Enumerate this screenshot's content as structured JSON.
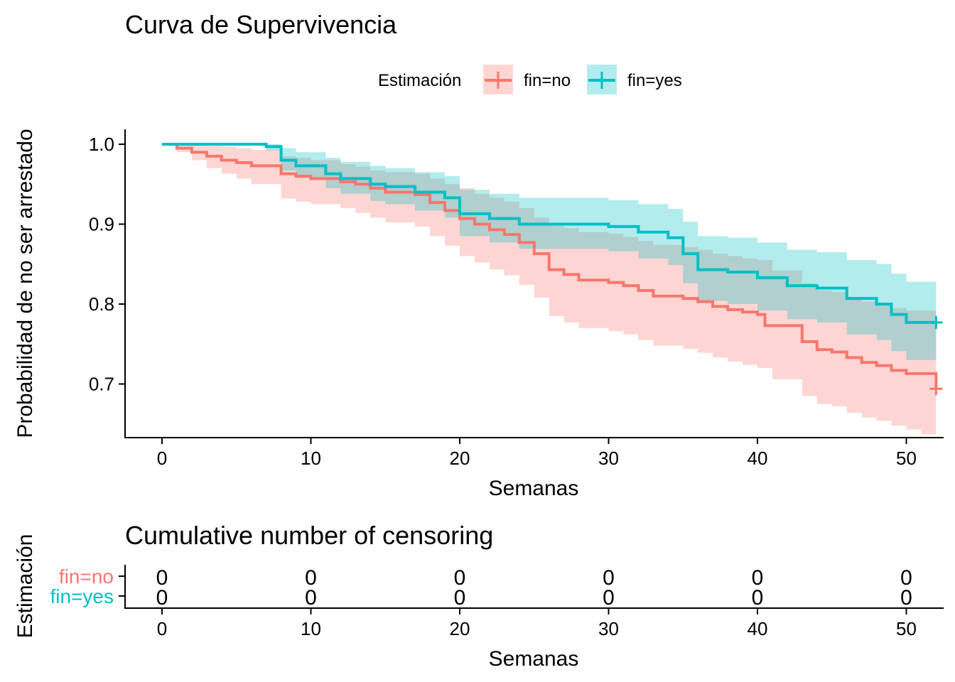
{
  "colors": {
    "no": "#F8766D",
    "yes": "#00BFC4",
    "axis": "#000000"
  },
  "legend": {
    "title": "Estimación",
    "items": [
      {
        "key": "no",
        "label": "fin=no"
      },
      {
        "key": "yes",
        "label": "fin=yes"
      }
    ]
  },
  "chart_data": [
    {
      "type": "line",
      "title": "Curva de Supervivencia",
      "xlabel": "Semanas",
      "ylabel": "Probabilidad de no ser arrestado",
      "xlim": [
        0,
        52
      ],
      "ylim": [
        0.65,
        1.0
      ],
      "xticks": [
        0,
        10,
        20,
        30,
        40,
        50
      ],
      "yticks": [
        0.7,
        0.8,
        0.9,
        1.0
      ],
      "ytick_labels": [
        "0.7",
        "0.8",
        "0.9",
        "1.0"
      ],
      "legend_position": "top",
      "grid": false,
      "series": [
        {
          "name": "fin=no",
          "color": "#F8766D",
          "steps": [
            [
              0,
              1.0
            ],
            [
              1,
              0.995
            ],
            [
              2,
              0.99
            ],
            [
              3,
              0.985
            ],
            [
              4,
              0.98
            ],
            [
              5,
              0.977
            ],
            [
              6,
              0.973
            ],
            [
              8,
              0.963
            ],
            [
              9,
              0.96
            ],
            [
              10,
              0.957
            ],
            [
              12,
              0.953
            ],
            [
              13,
              0.95
            ],
            [
              14,
              0.945
            ],
            [
              15,
              0.94
            ],
            [
              17,
              0.937
            ],
            [
              18,
              0.927
            ],
            [
              19,
              0.917
            ],
            [
              20,
              0.907
            ],
            [
              21,
              0.9
            ],
            [
              22,
              0.893
            ],
            [
              23,
              0.887
            ],
            [
              24,
              0.877
            ],
            [
              25,
              0.863
            ],
            [
              26,
              0.843
            ],
            [
              27,
              0.837
            ],
            [
              28,
              0.83
            ],
            [
              30,
              0.827
            ],
            [
              31,
              0.823
            ],
            [
              32,
              0.817
            ],
            [
              33,
              0.81
            ],
            [
              35,
              0.807
            ],
            [
              36,
              0.803
            ],
            [
              37,
              0.797
            ],
            [
              38,
              0.793
            ],
            [
              39,
              0.79
            ],
            [
              40,
              0.787
            ],
            [
              40.5,
              0.773
            ],
            [
              43,
              0.753
            ],
            [
              44,
              0.743
            ],
            [
              45,
              0.74
            ],
            [
              46,
              0.733
            ],
            [
              47,
              0.727
            ],
            [
              48,
              0.723
            ],
            [
              49,
              0.717
            ],
            [
              50,
              0.713
            ],
            [
              52,
              0.694
            ]
          ],
          "ci_lower": [
            [
              0,
              1.0
            ],
            [
              1,
              0.99
            ],
            [
              2,
              0.98
            ],
            [
              3,
              0.97
            ],
            [
              4,
              0.963
            ],
            [
              5,
              0.957
            ],
            [
              6,
              0.95
            ],
            [
              8,
              0.932
            ],
            [
              9,
              0.928
            ],
            [
              10,
              0.925
            ],
            [
              12,
              0.92
            ],
            [
              13,
              0.914
            ],
            [
              14,
              0.908
            ],
            [
              15,
              0.902
            ],
            [
              17,
              0.897
            ],
            [
              18,
              0.885
            ],
            [
              19,
              0.873
            ],
            [
              20,
              0.86
            ],
            [
              21,
              0.852
            ],
            [
              22,
              0.843
            ],
            [
              23,
              0.836
            ],
            [
              24,
              0.824
            ],
            [
              25,
              0.808
            ],
            [
              26,
              0.785
            ],
            [
              27,
              0.777
            ],
            [
              28,
              0.77
            ],
            [
              30,
              0.766
            ],
            [
              31,
              0.762
            ],
            [
              32,
              0.755
            ],
            [
              33,
              0.748
            ],
            [
              35,
              0.744
            ],
            [
              36,
              0.739
            ],
            [
              37,
              0.733
            ],
            [
              38,
              0.728
            ],
            [
              39,
              0.724
            ],
            [
              40,
              0.72
            ],
            [
              41,
              0.706
            ],
            [
              43,
              0.685
            ],
            [
              44,
              0.675
            ],
            [
              45,
              0.672
            ],
            [
              46,
              0.664
            ],
            [
              47,
              0.658
            ],
            [
              48,
              0.654
            ],
            [
              49,
              0.648
            ],
            [
              50,
              0.643
            ],
            [
              51,
              0.637
            ],
            [
              52,
              0.637
            ]
          ],
          "ci_upper": [
            [
              0,
              1.0
            ],
            [
              1,
              1.0
            ],
            [
              2,
              1.0
            ],
            [
              3,
              0.998
            ],
            [
              4,
              0.997
            ],
            [
              5,
              0.995
            ],
            [
              6,
              0.993
            ],
            [
              8,
              0.985
            ],
            [
              9,
              0.983
            ],
            [
              10,
              0.98
            ],
            [
              12,
              0.975
            ],
            [
              13,
              0.972
            ],
            [
              14,
              0.967
            ],
            [
              15,
              0.965
            ],
            [
              17,
              0.963
            ],
            [
              18,
              0.957
            ],
            [
              19,
              0.95
            ],
            [
              20,
              0.945
            ],
            [
              21,
              0.938
            ],
            [
              22,
              0.933
            ],
            [
              23,
              0.928
            ],
            [
              24,
              0.92
            ],
            [
              25,
              0.908
            ],
            [
              26,
              0.898
            ],
            [
              27,
              0.895
            ],
            [
              28,
              0.89
            ],
            [
              30,
              0.888
            ],
            [
              31,
              0.884
            ],
            [
              32,
              0.879
            ],
            [
              33,
              0.874
            ],
            [
              35,
              0.871
            ],
            [
              36,
              0.868
            ],
            [
              37,
              0.863
            ],
            [
              38,
              0.86
            ],
            [
              39,
              0.857
            ],
            [
              40,
              0.855
            ],
            [
              41,
              0.842
            ],
            [
              43,
              0.826
            ],
            [
              44,
              0.817
            ],
            [
              45,
              0.815
            ],
            [
              46,
              0.809
            ],
            [
              47,
              0.803
            ],
            [
              48,
              0.8
            ],
            [
              49,
              0.795
            ],
            [
              50,
              0.792
            ],
            [
              52,
              0.788
            ]
          ]
        },
        {
          "name": "fin=yes",
          "color": "#00BFC4",
          "steps": [
            [
              0,
              1.0
            ],
            [
              7,
              0.997
            ],
            [
              8,
              0.98
            ],
            [
              9,
              0.973
            ],
            [
              11,
              0.963
            ],
            [
              12,
              0.957
            ],
            [
              14,
              0.95
            ],
            [
              15,
              0.947
            ],
            [
              17,
              0.94
            ],
            [
              19,
              0.933
            ],
            [
              20,
              0.913
            ],
            [
              22,
              0.907
            ],
            [
              24,
              0.9
            ],
            [
              30,
              0.897
            ],
            [
              32,
              0.89
            ],
            [
              34,
              0.883
            ],
            [
              35,
              0.863
            ],
            [
              36,
              0.843
            ],
            [
              38,
              0.84
            ],
            [
              40,
              0.833
            ],
            [
              42,
              0.823
            ],
            [
              44,
              0.82
            ],
            [
              46,
              0.807
            ],
            [
              48,
              0.8
            ],
            [
              49,
              0.787
            ],
            [
              50,
              0.777
            ],
            [
              52,
              0.777
            ]
          ],
          "ci_lower": [
            [
              0,
              1.0
            ],
            [
              7,
              0.992
            ],
            [
              8,
              0.967
            ],
            [
              9,
              0.958
            ],
            [
              11,
              0.945
            ],
            [
              12,
              0.938
            ],
            [
              14,
              0.929
            ],
            [
              15,
              0.925
            ],
            [
              17,
              0.917
            ],
            [
              19,
              0.908
            ],
            [
              20,
              0.885
            ],
            [
              22,
              0.877
            ],
            [
              24,
              0.869
            ],
            [
              30,
              0.866
            ],
            [
              32,
              0.857
            ],
            [
              34,
              0.849
            ],
            [
              35,
              0.826
            ],
            [
              36,
              0.804
            ],
            [
              38,
              0.8
            ],
            [
              40,
              0.792
            ],
            [
              42,
              0.781
            ],
            [
              44,
              0.777
            ],
            [
              46,
              0.762
            ],
            [
              48,
              0.755
            ],
            [
              49,
              0.741
            ],
            [
              50,
              0.73
            ],
            [
              52,
              0.73
            ]
          ],
          "ci_upper": [
            [
              0,
              1.0
            ],
            [
              7,
              1.0
            ],
            [
              8,
              0.995
            ],
            [
              9,
              0.99
            ],
            [
              11,
              0.983
            ],
            [
              12,
              0.978
            ],
            [
              14,
              0.973
            ],
            [
              15,
              0.97
            ],
            [
              17,
              0.965
            ],
            [
              19,
              0.96
            ],
            [
              20,
              0.943
            ],
            [
              22,
              0.938
            ],
            [
              24,
              0.933
            ],
            [
              30,
              0.93
            ],
            [
              32,
              0.925
            ],
            [
              34,
              0.919
            ],
            [
              35,
              0.903
            ],
            [
              36,
              0.885
            ],
            [
              38,
              0.883
            ],
            [
              40,
              0.877
            ],
            [
              42,
              0.868
            ],
            [
              44,
              0.865
            ],
            [
              46,
              0.855
            ],
            [
              48,
              0.85
            ],
            [
              49,
              0.838
            ],
            [
              50,
              0.828
            ],
            [
              52,
              0.828
            ]
          ]
        }
      ],
      "censor_marks": [
        {
          "series": "fin=no",
          "x": 52,
          "y": 0.694
        },
        {
          "series": "fin=yes",
          "x": 52,
          "y": 0.777
        }
      ]
    },
    {
      "type": "table",
      "title": "Cumulative number of censoring",
      "xlabel": "Semanas",
      "ylabel": "Estimación",
      "xlim": [
        0,
        52
      ],
      "xticks": [
        0,
        10,
        20,
        30,
        40,
        50
      ],
      "rows": [
        {
          "label": "fin=no",
          "color": "#F8766D",
          "values": [
            0,
            0,
            0,
            0,
            0,
            0
          ]
        },
        {
          "label": "fin=yes",
          "color": "#00BFC4",
          "values": [
            0,
            0,
            0,
            0,
            0,
            0
          ]
        }
      ]
    }
  ]
}
